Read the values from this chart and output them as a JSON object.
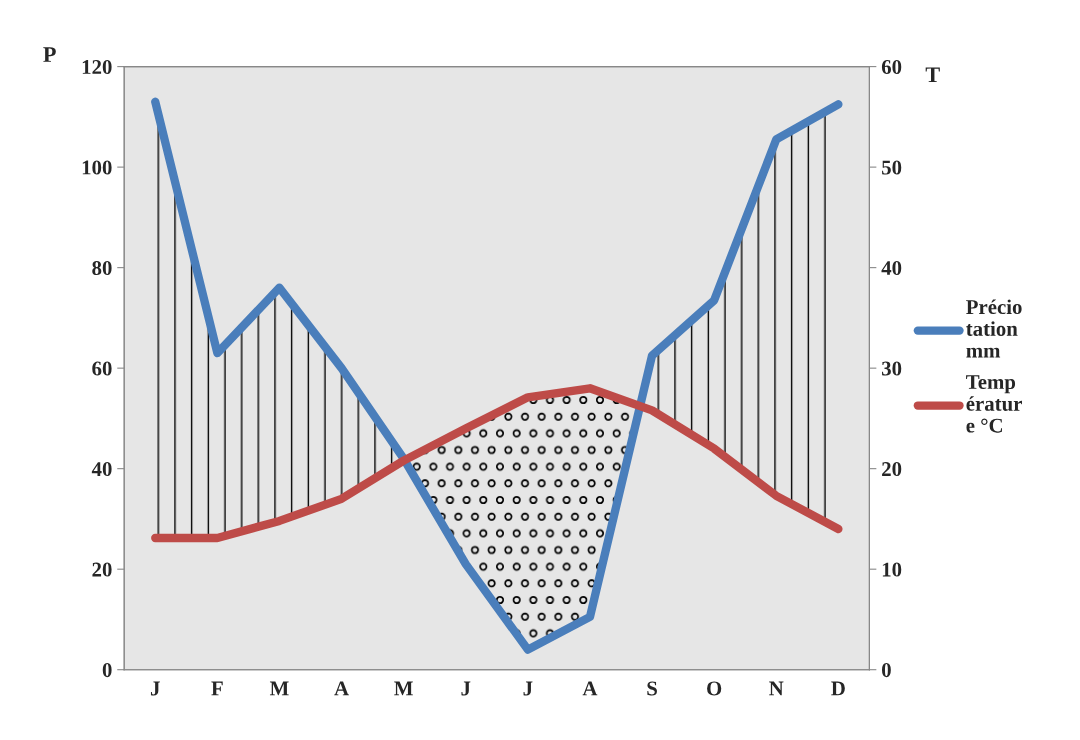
{
  "chart_data": {
    "type": "line",
    "ylabel": "P",
    "y2label": "T",
    "categories": [
      "J",
      "F",
      "M",
      "A",
      "M",
      "J",
      "J",
      "A",
      "S",
      "O",
      "N",
      "D"
    ],
    "series": [
      {
        "name": "Précio\ntation\nmm",
        "color": "#4a7ebb",
        "values": [
          113,
          63,
          76,
          60,
          42,
          21,
          4,
          10.5,
          62.5,
          73.5,
          105.5,
          112.5
        ]
      },
      {
        "name": "Temp\nératur\ne °C",
        "color": "#be4b48",
        "axis": "y2",
        "values": [
          13.1,
          13.1,
          14.8,
          17,
          20.8,
          24,
          27.1,
          28,
          25.8,
          22,
          17.3,
          14
        ]
      }
    ],
    "ylim": [
      0,
      120
    ],
    "yticks": [
      0,
      20,
      40,
      60,
      80,
      100,
      120
    ],
    "y2lim": [
      0,
      60
    ],
    "y2ticks": [
      0,
      10,
      20,
      30,
      40,
      50,
      60
    ],
    "legend": "right",
    "grid": false
  }
}
